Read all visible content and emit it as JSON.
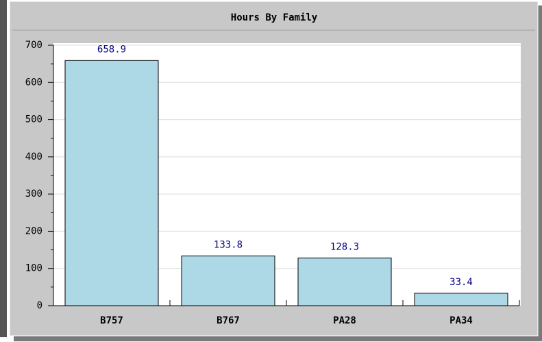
{
  "chart_data": {
    "type": "bar",
    "title": "Hours By Family",
    "categories": [
      "B757",
      "B767",
      "PA28",
      "PA34"
    ],
    "values": [
      658.9,
      133.8,
      128.3,
      33.4
    ],
    "color": "#add8e6",
    "label_color": "#000080",
    "ylim": [
      0,
      700
    ],
    "yticks": [
      0,
      100,
      200,
      300,
      400,
      500,
      600,
      700
    ],
    "grid": true
  }
}
